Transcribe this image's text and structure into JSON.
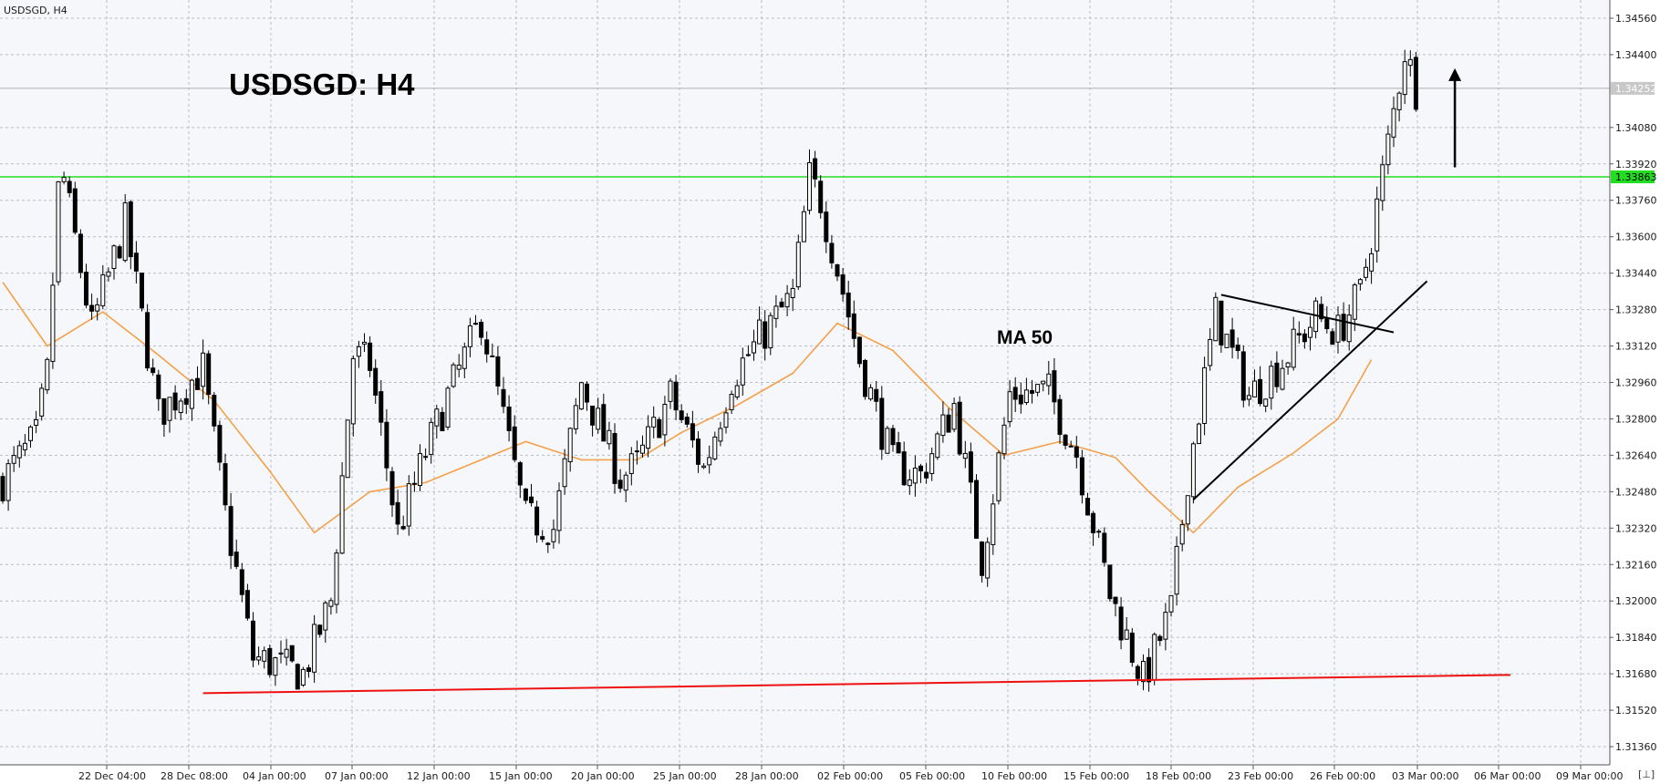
{
  "header": {
    "symbol_label": "USDSGD, H4",
    "title": "USDSGD: H4",
    "ma_label": "MA 50"
  },
  "colors": {
    "background": "#ffffff",
    "plot_background": "#f6f7fb",
    "grid": "#b8bcc6",
    "candle": "#000000",
    "ma": "#f4a048",
    "resistance": "#22dd22",
    "support": "#ee1111",
    "current_price_line": "#b0b0b0"
  },
  "chart_data": {
    "type": "candlestick",
    "timeframe": "H4",
    "ylim": [
      1.3128,
      1.3464
    ],
    "y_ticks": [
      "1.34560",
      "1.34400",
      "1.34080",
      "1.33920",
      "1.33760",
      "1.33600",
      "1.33440",
      "1.33280",
      "1.33120",
      "1.32960",
      "1.32800",
      "1.32640",
      "1.32480",
      "1.32320",
      "1.32160",
      "1.32000",
      "1.31840",
      "1.31680",
      "1.31520",
      "1.31360"
    ],
    "x_ticks": [
      "22 Dec 04:00",
      "28 Dec 08:00",
      "04 Jan 00:00",
      "07 Jan 00:00",
      "12 Jan 00:00",
      "15 Jan 00:00",
      "20 Jan 00:00",
      "25 Jan 00:00",
      "28 Jan 00:00",
      "02 Feb 00:00",
      "05 Feb 00:00",
      "10 Feb 00:00",
      "15 Feb 00:00",
      "18 Feb 00:00",
      "23 Feb 00:00",
      "26 Feb 00:00",
      "03 Mar 00:00",
      "06 Mar 00:00",
      "09 Mar 00:00"
    ],
    "candle_count": 272,
    "close_anchors": [
      [
        0,
        1.3253
      ],
      [
        6,
        1.3272
      ],
      [
        8,
        1.33
      ],
      [
        10,
        1.338
      ],
      [
        11,
        1.3385
      ],
      [
        16,
        1.332
      ],
      [
        22,
        1.3366
      ],
      [
        28,
        1.3282
      ],
      [
        36,
        1.3302
      ],
      [
        40,
        1.3238
      ],
      [
        45,
        1.3175
      ],
      [
        48,
        1.3173
      ],
      [
        54,
        1.3168
      ],
      [
        59,
        1.32
      ],
      [
        63,
        1.3308
      ],
      [
        66,
        1.3304
      ],
      [
        71,
        1.323
      ],
      [
        76,
        1.3265
      ],
      [
        80,
        1.329
      ],
      [
        86,
        1.3324
      ],
      [
        94,
        1.3236
      ],
      [
        99,
        1.3232
      ],
      [
        104,
        1.3296
      ],
      [
        111,
        1.3254
      ],
      [
        114,
        1.326
      ],
      [
        120,
        1.329
      ],
      [
        126,
        1.3258
      ],
      [
        131,
        1.3298
      ],
      [
        136,
        1.3315
      ],
      [
        142,
        1.3334
      ],
      [
        145,
        1.3386
      ],
      [
        147,
        1.3376
      ],
      [
        154,
        1.3306
      ],
      [
        160,
        1.326
      ],
      [
        165,
        1.3255
      ],
      [
        171,
        1.3286
      ],
      [
        176,
        1.3218
      ],
      [
        181,
        1.3291
      ],
      [
        188,
        1.3292
      ],
      [
        193,
        1.3265
      ],
      [
        199,
        1.3203
      ],
      [
        205,
        1.3165
      ],
      [
        210,
        1.3196
      ],
      [
        213,
        1.3255
      ],
      [
        218,
        1.3326
      ],
      [
        224,
        1.329
      ],
      [
        230,
        1.3305
      ],
      [
        236,
        1.3325
      ],
      [
        240,
        1.3318
      ],
      [
        244,
        1.3335
      ],
      [
        246,
        1.336
      ],
      [
        252,
        1.3442
      ],
      [
        254,
        1.3425
      ]
    ],
    "moving_average": {
      "name": "MA 50",
      "points": [
        [
          0,
          1.334
        ],
        [
          8,
          1.3312
        ],
        [
          18,
          1.3327
        ],
        [
          28,
          1.3308
        ],
        [
          38,
          1.3288
        ],
        [
          48,
          1.3257
        ],
        [
          56,
          1.323
        ],
        [
          66,
          1.3248
        ],
        [
          76,
          1.3252
        ],
        [
          86,
          1.3262
        ],
        [
          94,
          1.327
        ],
        [
          104,
          1.3262
        ],
        [
          114,
          1.3262
        ],
        [
          122,
          1.3274
        ],
        [
          132,
          1.3286
        ],
        [
          142,
          1.33
        ],
        [
          150,
          1.3322
        ],
        [
          160,
          1.331
        ],
        [
          170,
          1.3285
        ],
        [
          180,
          1.3264
        ],
        [
          190,
          1.327
        ],
        [
          200,
          1.3263
        ],
        [
          206,
          1.3248
        ],
        [
          214,
          1.323
        ],
        [
          222,
          1.325
        ],
        [
          232,
          1.3265
        ],
        [
          240,
          1.328
        ],
        [
          246,
          1.3306
        ]
      ]
    },
    "horizontal_levels": [
      {
        "role": "resistance",
        "value": 1.33863,
        "label": "1.33863"
      },
      {
        "role": "current",
        "value": 1.34252,
        "label": "1.34252"
      }
    ],
    "trendlines": [
      {
        "role": "support",
        "from": [
          36,
          1.31595
        ],
        "to": [
          271,
          1.31675
        ]
      },
      {
        "role": "triangle-upper",
        "from": [
          219,
          1.33345
        ],
        "to": [
          250,
          1.3318
        ]
      },
      {
        "role": "triangle-lower",
        "from": [
          214,
          1.32445
        ],
        "to": [
          256,
          1.33405
        ]
      }
    ],
    "annotation_arrow": {
      "direction": "up",
      "from": [
        261,
        1.33905
      ],
      "to": [
        261,
        1.3434
      ]
    }
  }
}
